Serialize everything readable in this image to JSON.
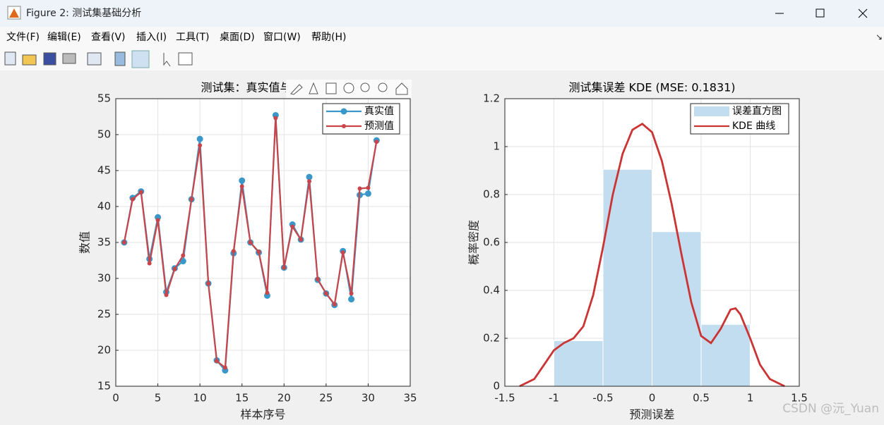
{
  "window": {
    "title": "Figure 2: 测试集基础分析",
    "menu": [
      "文件(F)",
      "编辑(E)",
      "查看(V)",
      "插入(I)",
      "工具(T)",
      "桌面(D)",
      "窗口(W)",
      "帮助(H)"
    ],
    "watermark": "CSDN @沅_Yuan"
  },
  "chart_data": [
    {
      "type": "line",
      "title": "测试集：真实值与预测值",
      "x_label": "样本序号",
      "y_label": "数值",
      "x": [
        1,
        2,
        3,
        4,
        5,
        6,
        7,
        8,
        9,
        10,
        11,
        12,
        13,
        14,
        15,
        16,
        17,
        18,
        19,
        20,
        21,
        22,
        23,
        24,
        25,
        26,
        27,
        28,
        29,
        30,
        31
      ],
      "series": [
        {
          "name": "真实值",
          "color": "#3a97c9",
          "marker_size": 4.5,
          "values": [
            35.0,
            41.2,
            42.1,
            32.7,
            38.5,
            28.1,
            31.4,
            32.4,
            41.0,
            49.4,
            29.3,
            18.6,
            17.2,
            33.5,
            43.6,
            35.0,
            33.6,
            27.6,
            52.7,
            31.5,
            37.5,
            35.4,
            44.1,
            29.8,
            27.9,
            26.3,
            33.8,
            27.1,
            41.6,
            41.8,
            49.2
          ]
        },
        {
          "name": "预测值",
          "color": "#c9454a",
          "marker_size": 3,
          "values": [
            35.0,
            41.0,
            42.0,
            32.1,
            38.1,
            27.7,
            31.3,
            33.2,
            41.0,
            48.5,
            29.3,
            18.5,
            17.6,
            33.8,
            42.8,
            35.0,
            33.7,
            28.0,
            52.3,
            31.5,
            37.2,
            35.4,
            43.5,
            29.9,
            27.9,
            26.4,
            33.6,
            27.9,
            42.5,
            42.6,
            49.0
          ]
        }
      ],
      "xlim": [
        0,
        35
      ],
      "xticks": [
        0,
        5,
        10,
        15,
        20,
        25,
        30,
        35
      ],
      "ylim": [
        15,
        55
      ],
      "yticks": [
        15,
        20,
        25,
        30,
        35,
        40,
        45,
        50,
        55
      ],
      "grid": true,
      "legend": "upper right"
    },
    {
      "type": "histogram",
      "title": "测试集误差 KDE (MSE: 0.1831)",
      "x_label": "预测误差",
      "y_label": "概率密度",
      "name": "误差直方图",
      "color": "#c2ddef",
      "bins": [
        -1,
        -0.5,
        0,
        0.5,
        1
      ],
      "values": [
        0.19,
        0.905,
        0.645,
        0.258
      ],
      "line": {
        "name": "KDE 曲线",
        "color": "#cc3333",
        "x": [
          -1.35,
          -1.2,
          -1.1,
          -1.0,
          -0.9,
          -0.8,
          -0.7,
          -0.6,
          -0.5,
          -0.4,
          -0.3,
          -0.2,
          -0.1,
          0,
          0.1,
          0.2,
          0.3,
          0.4,
          0.5,
          0.6,
          0.7,
          0.8,
          0.85,
          0.9,
          1.0,
          1.1,
          1.2,
          1.35
        ],
        "values": [
          0,
          0.03,
          0.09,
          0.15,
          0.18,
          0.2,
          0.25,
          0.38,
          0.58,
          0.8,
          0.97,
          1.07,
          1.095,
          1.06,
          0.94,
          0.76,
          0.55,
          0.35,
          0.21,
          0.18,
          0.24,
          0.32,
          0.325,
          0.3,
          0.2,
          0.09,
          0.03,
          0
        ]
      },
      "xlim": [
        -1.5,
        1.5
      ],
      "xticks": [
        -1.5,
        -1,
        -0.5,
        0,
        0.5,
        1,
        1.5
      ],
      "ylim": [
        0,
        1.2
      ],
      "yticks": [
        0,
        0.2,
        0.4,
        0.6,
        0.8,
        1,
        1.2
      ],
      "grid": true,
      "legend": "upper right"
    }
  ]
}
